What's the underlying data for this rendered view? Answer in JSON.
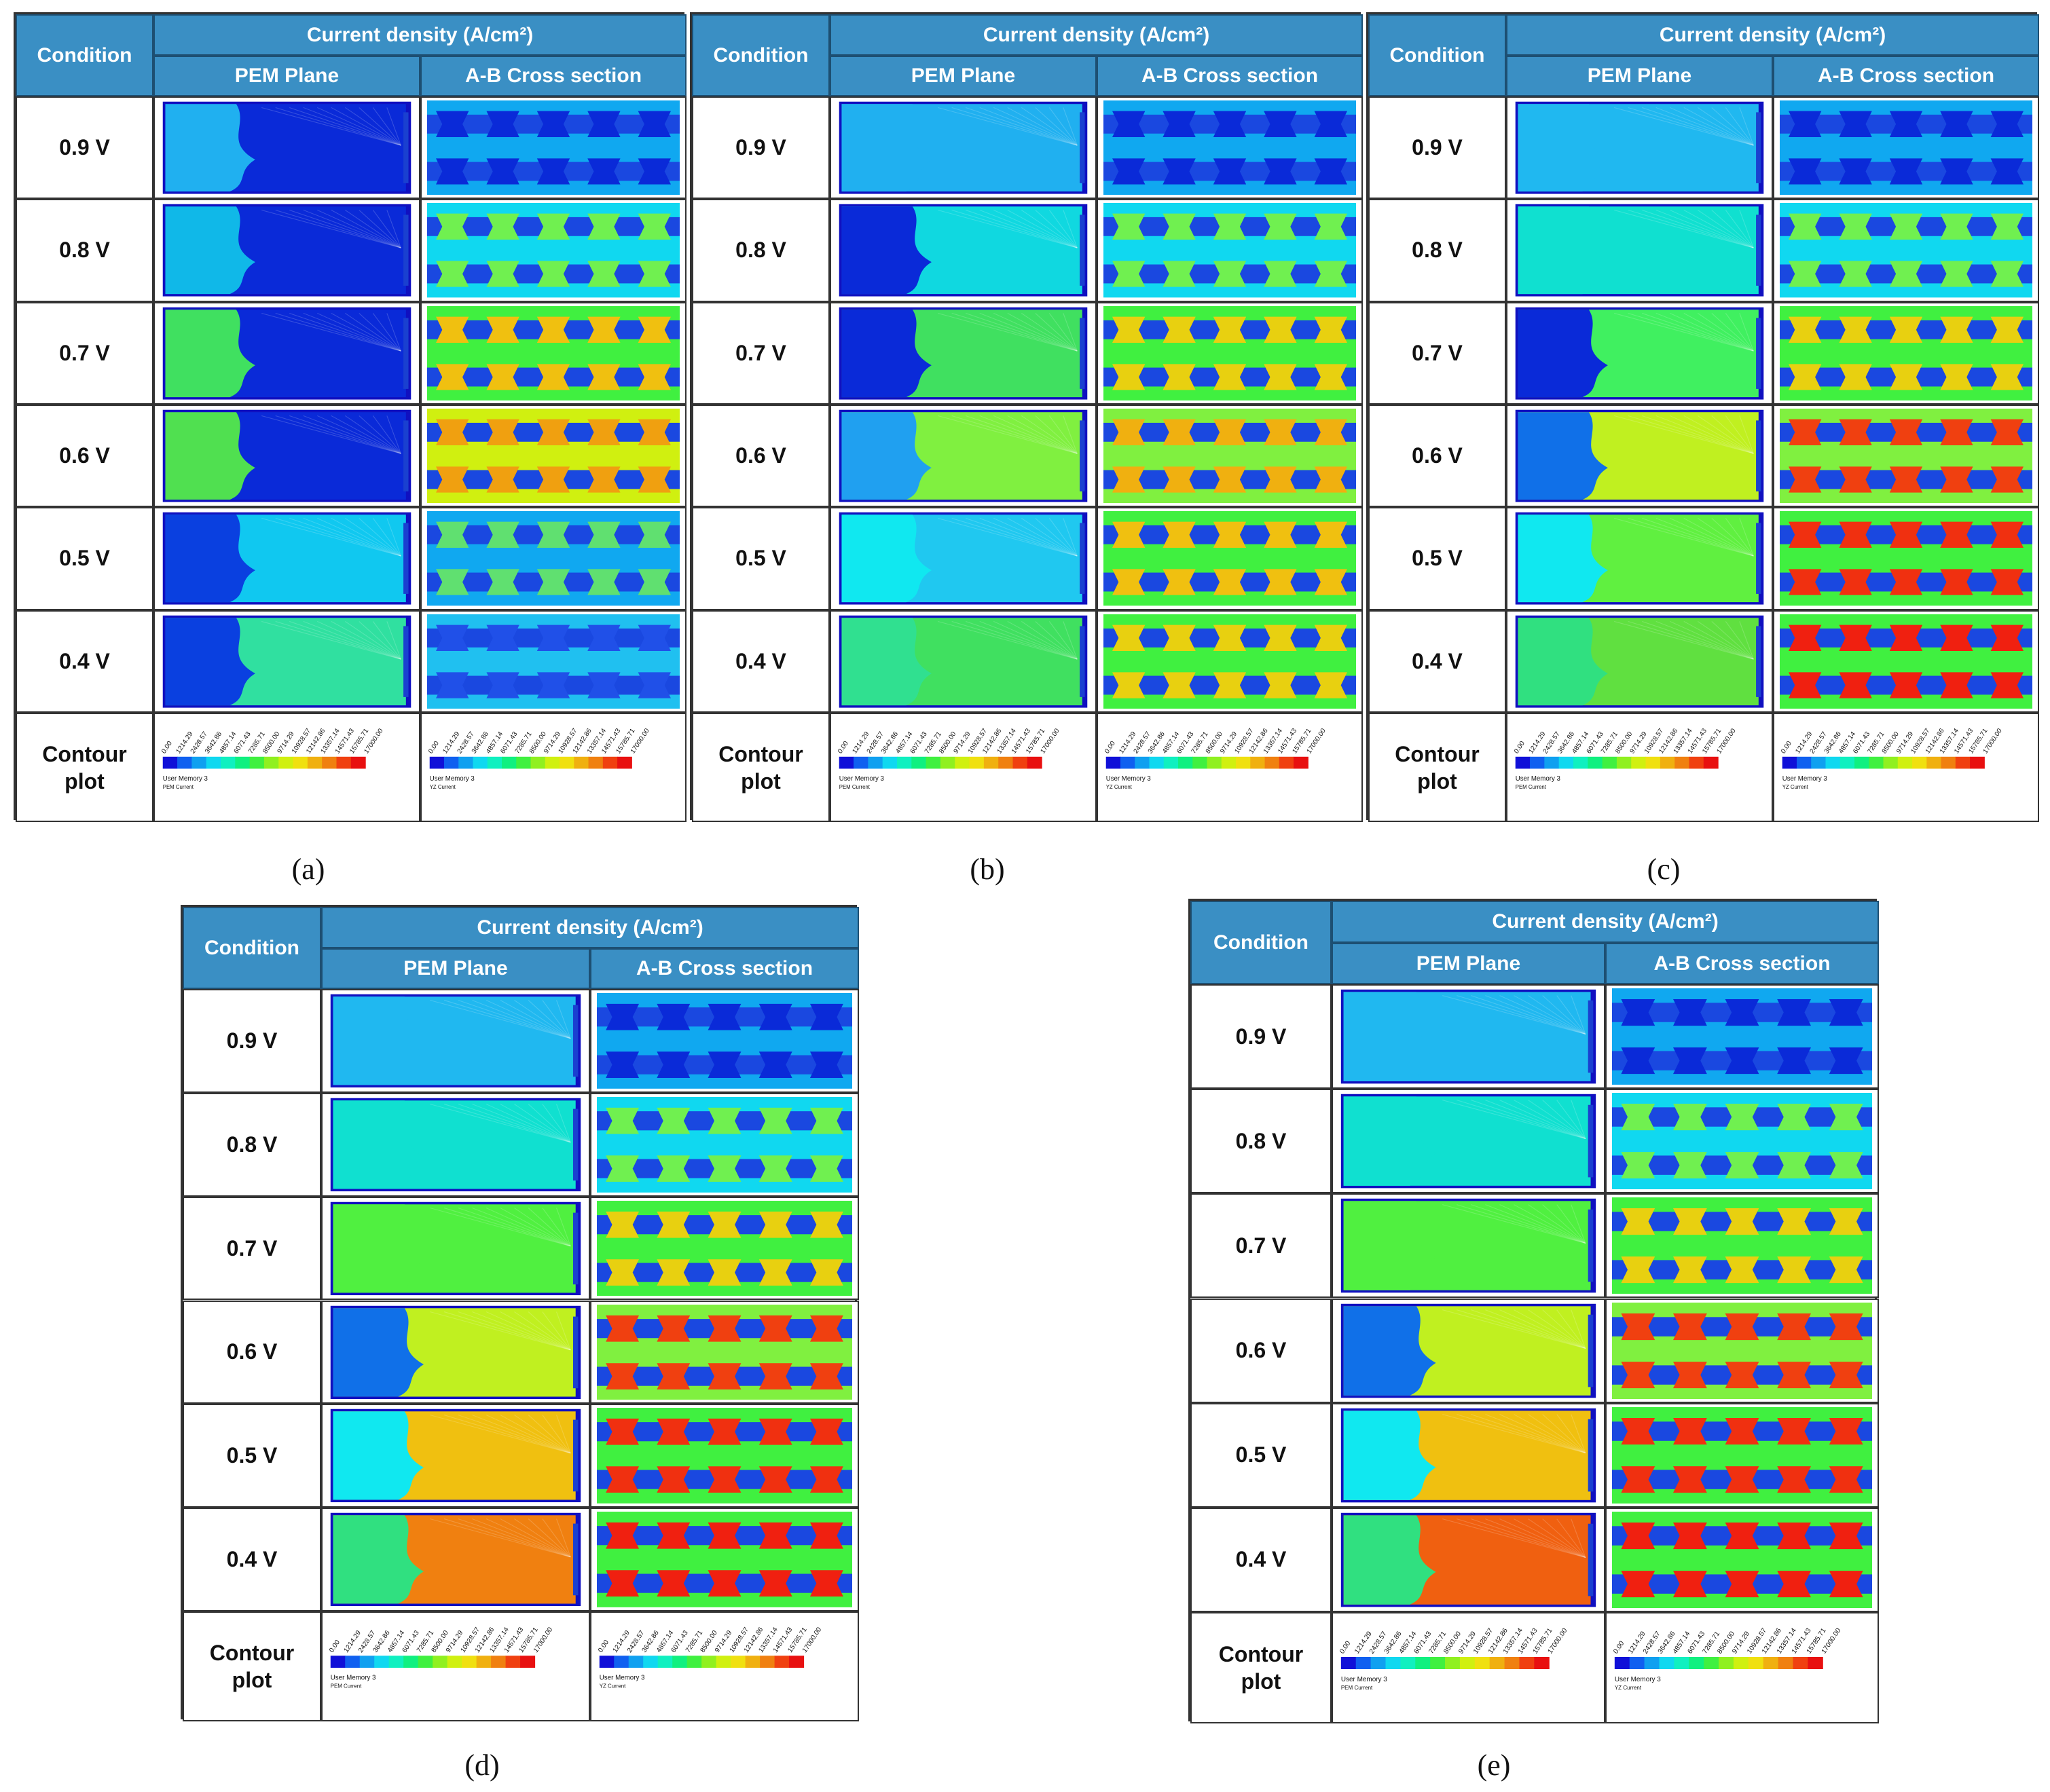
{
  "header": {
    "condition": "Condition",
    "current_density": "Current density (A/cm²)",
    "pem_plane": "PEM Plane",
    "cross_section": "A-B Cross section"
  },
  "rows": [
    "0.9 V",
    "0.8 V",
    "0.7 V",
    "0.6 V",
    "0.5 V",
    "0.4 V"
  ],
  "contour_label_line1": "Contour",
  "contour_label_line2": "plot",
  "legend": {
    "ticks": [
      "0.00",
      "1214.29",
      "2428.57",
      "3642.86",
      "4857.14",
      "6071.43",
      "7285.71",
      "8500.00",
      "9714.29",
      "10928.57",
      "12142.86",
      "13357.14",
      "14571.43",
      "15785.71",
      "17000.00"
    ],
    "pem_title": "User Memory 3",
    "pem_sub": "PEM Current",
    "yz_title": "User Memory 3",
    "yz_sub": "YZ Current",
    "colors": [
      "#1010d8",
      "#1060f0",
      "#10a0f0",
      "#10d8f0",
      "#10f0c0",
      "#10f080",
      "#40f040",
      "#90f020",
      "#d0f010",
      "#f0e010",
      "#f0b010",
      "#f08010",
      "#f04010",
      "#e81010"
    ]
  },
  "panels": [
    {
      "caption": "(a)",
      "pem": [
        "#0a2ad8",
        "#0a2ad8",
        "#0a2ad8",
        "#0a2ad8",
        "#10c8f0",
        "#30e0a0"
      ],
      "pem_accent": [
        "#20b0f0",
        "#10b8e8",
        "#40e060",
        "#50e050",
        "#0a40e0",
        "#0a40e0"
      ],
      "xs": [
        "#10a8f0",
        "#10d8f0",
        "#40f040",
        "#d0f010",
        "#10a8f0",
        "#20c0f0"
      ],
      "xs_spot": [
        "#0a2ad8",
        "#70f050",
        "#f0c010",
        "#f0a010",
        "#60e070",
        "#2050e8"
      ]
    },
    {
      "caption": "(b)",
      "pem": [
        "#20b0f0",
        "#10d8e0",
        "#40e060",
        "#80f040",
        "#20c8f0",
        "#40e060"
      ],
      "pem_accent": [
        "#20b0f0",
        "#0a2ad8",
        "#0a2ad8",
        "#20a0f0",
        "#10e8f0",
        "#30e090"
      ],
      "xs": [
        "#10a8f0",
        "#10d8f0",
        "#40f040",
        "#80f040",
        "#40f040",
        "#40f040"
      ],
      "xs_spot": [
        "#0a2ad8",
        "#70f050",
        "#e8d010",
        "#f0b010",
        "#f0c010",
        "#e8d010"
      ]
    },
    {
      "caption": "(c)",
      "pem": [
        "#20b8f0",
        "#10e0d0",
        "#40f060",
        "#c0f020",
        "#60f040",
        "#60e040"
      ],
      "pem_accent": [
        "#20b8f0",
        "#10e0d0",
        "#0a2ad8",
        "#1070e8",
        "#10e8f0",
        "#30e080"
      ],
      "xs": [
        "#10a8f0",
        "#10d8f0",
        "#40f040",
        "#80f040",
        "#40f040",
        "#40f040"
      ],
      "xs_spot": [
        "#0a2ad8",
        "#70f050",
        "#e8d010",
        "#f04010",
        "#f03010",
        "#f02010"
      ]
    },
    {
      "caption": "(d)",
      "pem": [
        "#20b8f0",
        "#10e0d0",
        "#50f040",
        "#c0f020",
        "#f0c010",
        "#f08010"
      ],
      "pem_accent": [
        "#20b8f0",
        "#10e0d0",
        "#50f040",
        "#1070e8",
        "#10e8f0",
        "#30e080"
      ],
      "xs": [
        "#10a8f0",
        "#10d8f0",
        "#40f040",
        "#80f040",
        "#40f040",
        "#40f040"
      ],
      "xs_spot": [
        "#0a2ad8",
        "#70f050",
        "#e8d010",
        "#f04010",
        "#f03010",
        "#f02010"
      ]
    },
    {
      "caption": "(e)",
      "pem": [
        "#20b8f0",
        "#10e0d0",
        "#50f040",
        "#c0f020",
        "#f0c010",
        "#f06010"
      ],
      "pem_accent": [
        "#20b8f0",
        "#10e0d0",
        "#50f040",
        "#1070e8",
        "#10e8f0",
        "#30e080"
      ],
      "xs": [
        "#10a8f0",
        "#10d8f0",
        "#40f040",
        "#80f040",
        "#40f040",
        "#40f040"
      ],
      "xs_spot": [
        "#0a2ad8",
        "#70f050",
        "#e8d010",
        "#f04010",
        "#f03010",
        "#f02010"
      ]
    }
  ]
}
